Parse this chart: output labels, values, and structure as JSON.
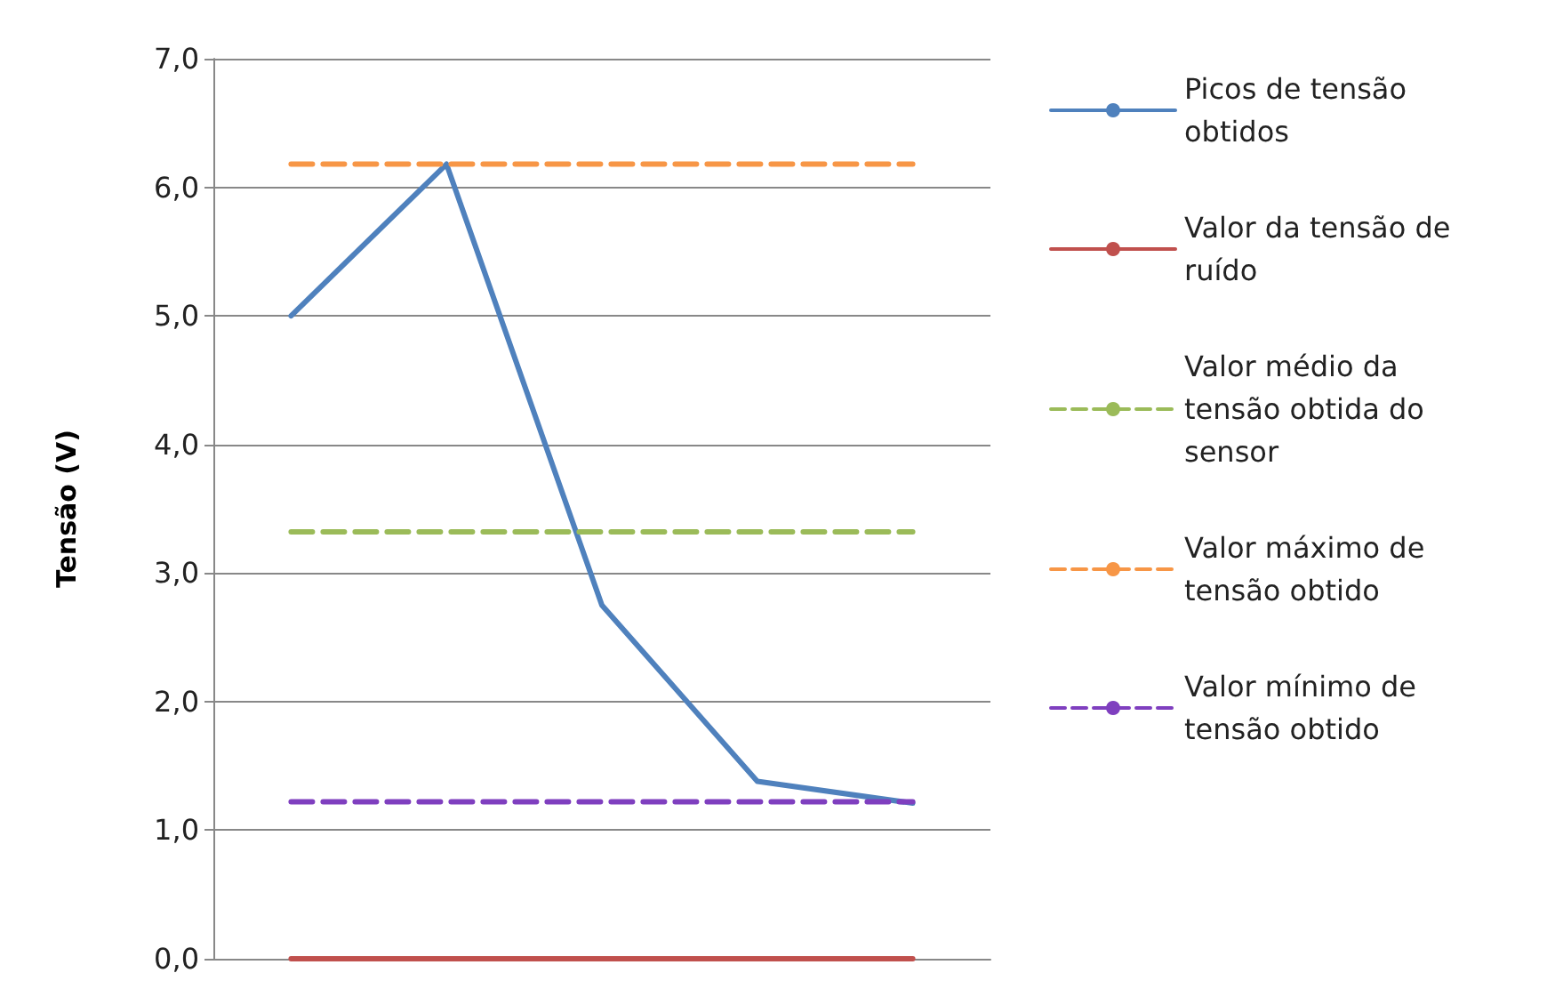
{
  "chart_data": {
    "type": "line",
    "ylabel": "Tensão (V)",
    "categories": [
      null,
      null,
      null,
      null,
      null
    ],
    "series": [
      {
        "name": "Picos de tensão obtidos",
        "color": "#4f81bd",
        "values": [
          5.0,
          6.18,
          2.75,
          1.38,
          1.21
        ],
        "line_style": "solid"
      },
      {
        "name": "Valor da tensão de ruído",
        "color": "#c0504d",
        "values": [
          0,
          0,
          0,
          0,
          0
        ],
        "line_style": "solid"
      },
      {
        "name": "Valor médio da tensão obtida do sensor",
        "color": "#9bbb59",
        "values": [
          3.32,
          3.32,
          3.32,
          3.32,
          3.32
        ],
        "line_style": "dashed"
      },
      {
        "name": "Valor máximo de tensão obtido",
        "color": "#f79646",
        "values": [
          6.18,
          6.18,
          6.18,
          6.18,
          6.18
        ],
        "line_style": "dashed"
      },
      {
        "name": "Valor mínimo de tensão obtido",
        "color": "#7f3fbf",
        "values": [
          1.22,
          1.22,
          1.22,
          1.22,
          1.22
        ],
        "line_style": "dashed"
      }
    ],
    "ylim": [
      0,
      7
    ],
    "yticks": [
      {
        "value": 0,
        "label": "0,0"
      },
      {
        "value": 1,
        "label": "1,0"
      },
      {
        "value": 2,
        "label": "2,0"
      },
      {
        "value": 3,
        "label": "3,0"
      },
      {
        "value": 4,
        "label": "4,0"
      },
      {
        "value": 5,
        "label": "5,0"
      },
      {
        "value": 6,
        "label": "6,0"
      },
      {
        "value": 7,
        "label": "7,0"
      }
    ],
    "grid": "y",
    "legend": "right",
    "tick_labels": "y",
    "marker": "none"
  }
}
